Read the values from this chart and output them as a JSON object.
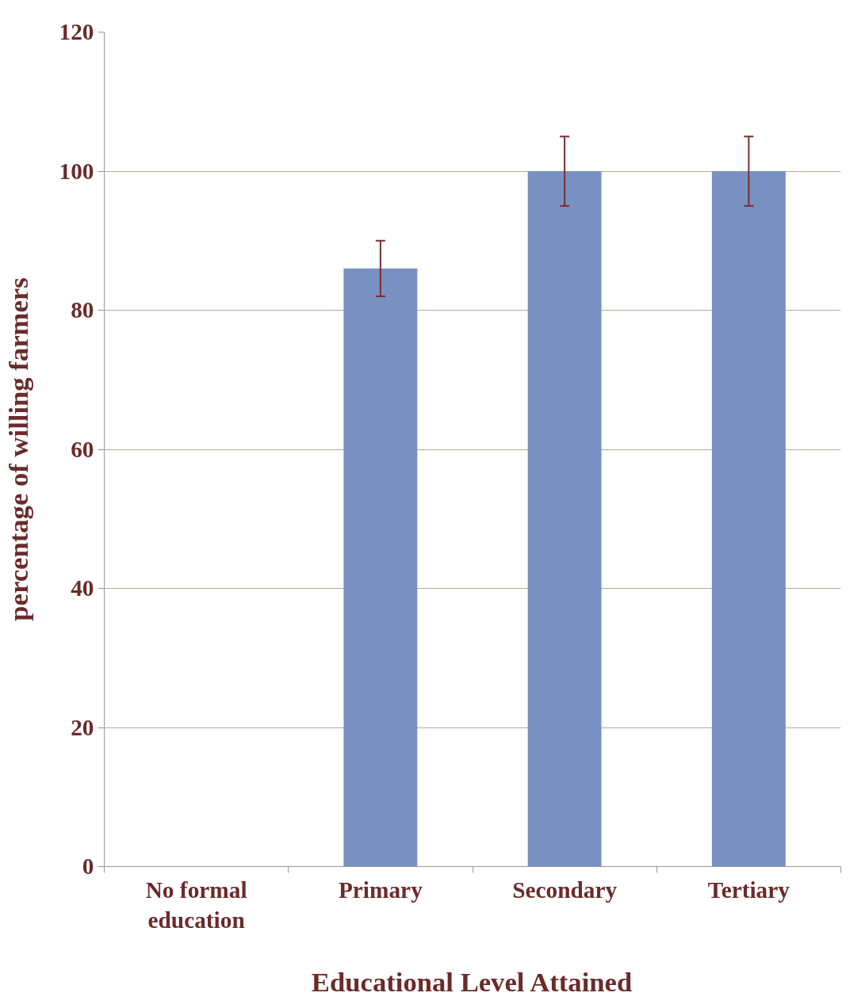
{
  "chart_data": {
    "type": "bar",
    "xlabel": "Educational Level Attained",
    "ylabel": "percentage of willing farmers",
    "categories": [
      "No formal\neducation",
      "Primary",
      "Secondary",
      "Tertiary"
    ],
    "values": [
      0,
      86,
      100,
      100
    ],
    "errors": [
      null,
      4,
      5,
      5
    ],
    "color": "#7891c2",
    "ylim": [
      0,
      120
    ],
    "yticks": [
      0,
      20,
      40,
      60,
      80,
      100,
      120
    ],
    "grid": "y"
  }
}
